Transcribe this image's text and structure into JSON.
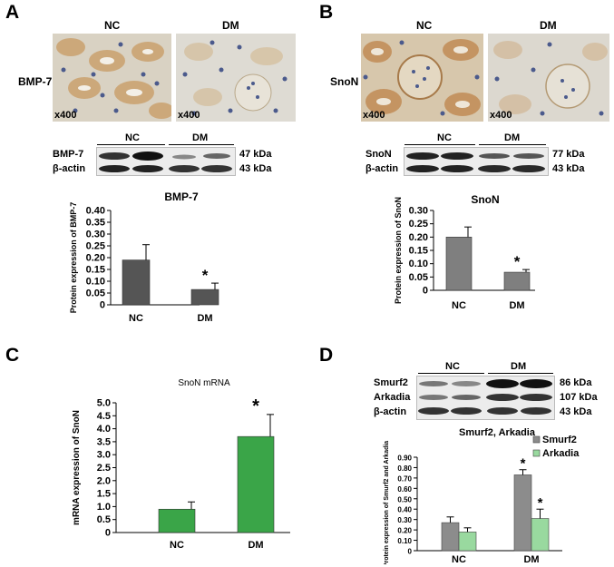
{
  "panels": {
    "A": {
      "letter": "A",
      "micro_left_title": "NC",
      "micro_right_title": "DM",
      "micro_row_label": "BMP-7",
      "magnification": "x400",
      "blot": {
        "group_labels": [
          "NC",
          "DM"
        ],
        "rows": [
          {
            "label": "BMP-7",
            "kda": "47 kDa"
          },
          {
            "label": "β-actin",
            "kda": "43 kDa"
          }
        ]
      }
    },
    "B": {
      "letter": "B",
      "micro_left_title": "NC",
      "micro_right_title": "DM",
      "micro_row_label": "SnoN",
      "magnification": "x400",
      "blot": {
        "group_labels": [
          "NC",
          "DM"
        ],
        "rows": [
          {
            "label": "SnoN",
            "kda": "77 kDa"
          },
          {
            "label": "β-actin",
            "kda": "43 kDa"
          }
        ]
      }
    },
    "C": {
      "letter": "C"
    },
    "D": {
      "letter": "D",
      "blot": {
        "group_labels": [
          "NC",
          "DM"
        ],
        "rows": [
          {
            "label": "Smurf2",
            "kda": "86 kDa"
          },
          {
            "label": "Arkadia",
            "kda": "107 kDa"
          },
          {
            "label": "β-actin",
            "kda": "43 kDa"
          }
        ]
      }
    }
  },
  "chart_data": [
    {
      "id": "A",
      "type": "bar",
      "title": "BMP-7",
      "ylabel": "Protein expression of BMP-7",
      "categories": [
        "NC",
        "DM"
      ],
      "values": [
        0.19,
        0.065
      ],
      "errors": [
        0.065,
        0.027
      ],
      "ylim": [
        0,
        0.4
      ],
      "yticks": [
        "0",
        "0.05",
        "0.10",
        "0.15",
        "0.20",
        "0.25",
        "0.30",
        "0.35",
        "0.40"
      ],
      "significance": [
        "",
        "*"
      ],
      "color": "#555555"
    },
    {
      "id": "B",
      "type": "bar",
      "title": "SnoN",
      "ylabel": "Protein expression of SnoN",
      "categories": [
        "NC",
        "DM"
      ],
      "values": [
        0.2,
        0.068
      ],
      "errors": [
        0.038,
        0.01
      ],
      "ylim": [
        0,
        0.3
      ],
      "yticks": [
        "0",
        "0.05",
        "0.10",
        "0.15",
        "0.20",
        "0.25",
        "0.30"
      ],
      "significance": [
        "",
        "*"
      ],
      "color": "#7f7f7f"
    },
    {
      "id": "C",
      "type": "bar",
      "title": "SnoN mRNA",
      "ylabel": "mRNA expression of SnoN",
      "categories": [
        "NC",
        "DM"
      ],
      "values": [
        0.9,
        3.7
      ],
      "errors": [
        0.28,
        0.85
      ],
      "ylim": [
        0,
        5
      ],
      "yticks": [
        "0",
        "0.5",
        "1.0",
        "1.5",
        "2.0",
        "2.5",
        "3.0",
        "3.5",
        "4.0",
        "4.5",
        "5.0"
      ],
      "significance": [
        "",
        "*"
      ],
      "color": "#3aa548"
    },
    {
      "id": "D",
      "type": "bar",
      "title": "Smurf2,  Arkadia",
      "ylabel": "Protein expression of Smurf2 and Arkadia",
      "categories": [
        "NC",
        "DM"
      ],
      "series": [
        {
          "name": "Smurf2",
          "values": [
            0.27,
            0.73
          ],
          "errors": [
            0.055,
            0.05
          ],
          "color": "#8c8c8c",
          "significance": [
            "",
            "*"
          ]
        },
        {
          "name": "Arkadia",
          "values": [
            0.18,
            0.31
          ],
          "errors": [
            0.04,
            0.09
          ],
          "color": "#99d99f",
          "significance": [
            "",
            "*"
          ]
        }
      ],
      "ylim": [
        0,
        0.9
      ],
      "yticks": [
        "0",
        "0.10",
        "0.20",
        "0.30",
        "0.40",
        "0.50",
        "0.60",
        "0.70",
        "0.80",
        "0.90"
      ],
      "legend_position": "top-right"
    }
  ]
}
